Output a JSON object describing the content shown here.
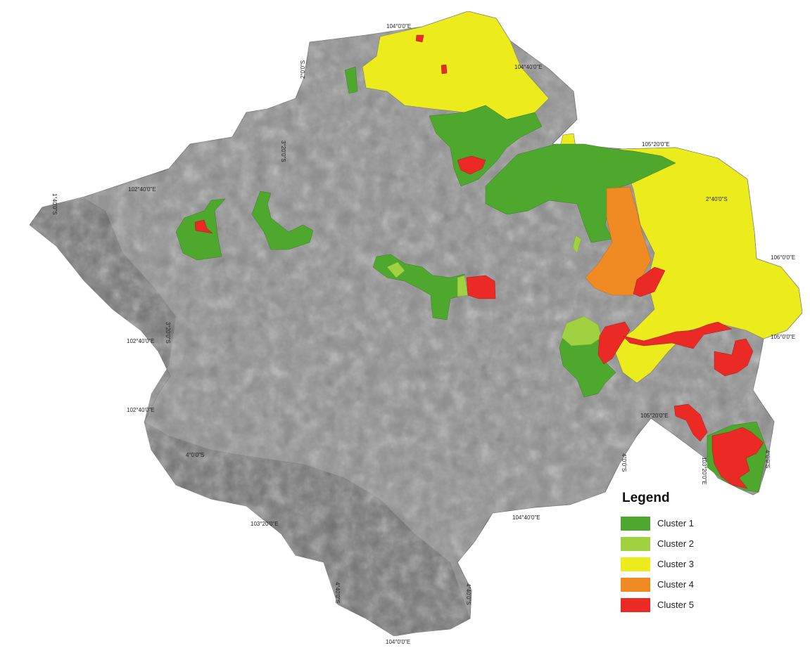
{
  "legend": {
    "title": "Legend",
    "items": [
      {
        "label": "Cluster 1",
        "color": "#4fa82e"
      },
      {
        "label": "Cluster 2",
        "color": "#9fd140"
      },
      {
        "label": "Cluster 3",
        "color": "#ecec1c"
      },
      {
        "label": "Cluster 4",
        "color": "#f08a23"
      },
      {
        "label": "Cluster 5",
        "color": "#ec2a25"
      }
    ]
  },
  "coords": {
    "c1": "104°0'0\"E",
    "c2": "104°40'0\"E",
    "c3": "105°20'0\"E",
    "c4": "2°40'0\"S",
    "c5": "106°0'0\"E",
    "c6": "105°0'0\"E",
    "c7": "105°20'0\"E",
    "c8": "102°40'0\"E",
    "c9": "102°40'0\"E",
    "c10": "102°40'0\"E",
    "c11": "103°20'0\"E",
    "c12": "104°40'0\"E",
    "c13": "104°0'0\"E",
    "c14": "4°0'0\"S",
    "c15": "4°0'0\"S",
    "c16": "4°40'0\"S",
    "c17": "4°40'0\"S",
    "c18": "4°0'0\"S",
    "c19": "2°0'0\"S",
    "c20": "3°20'0\"S",
    "c21": "3°20'0\"S",
    "c22": "1°40'0\"S",
    "c23": "103°20'0\"E"
  },
  "colors": {
    "terrain": "#8f8f8f",
    "mountains": "#6f6f6f"
  }
}
